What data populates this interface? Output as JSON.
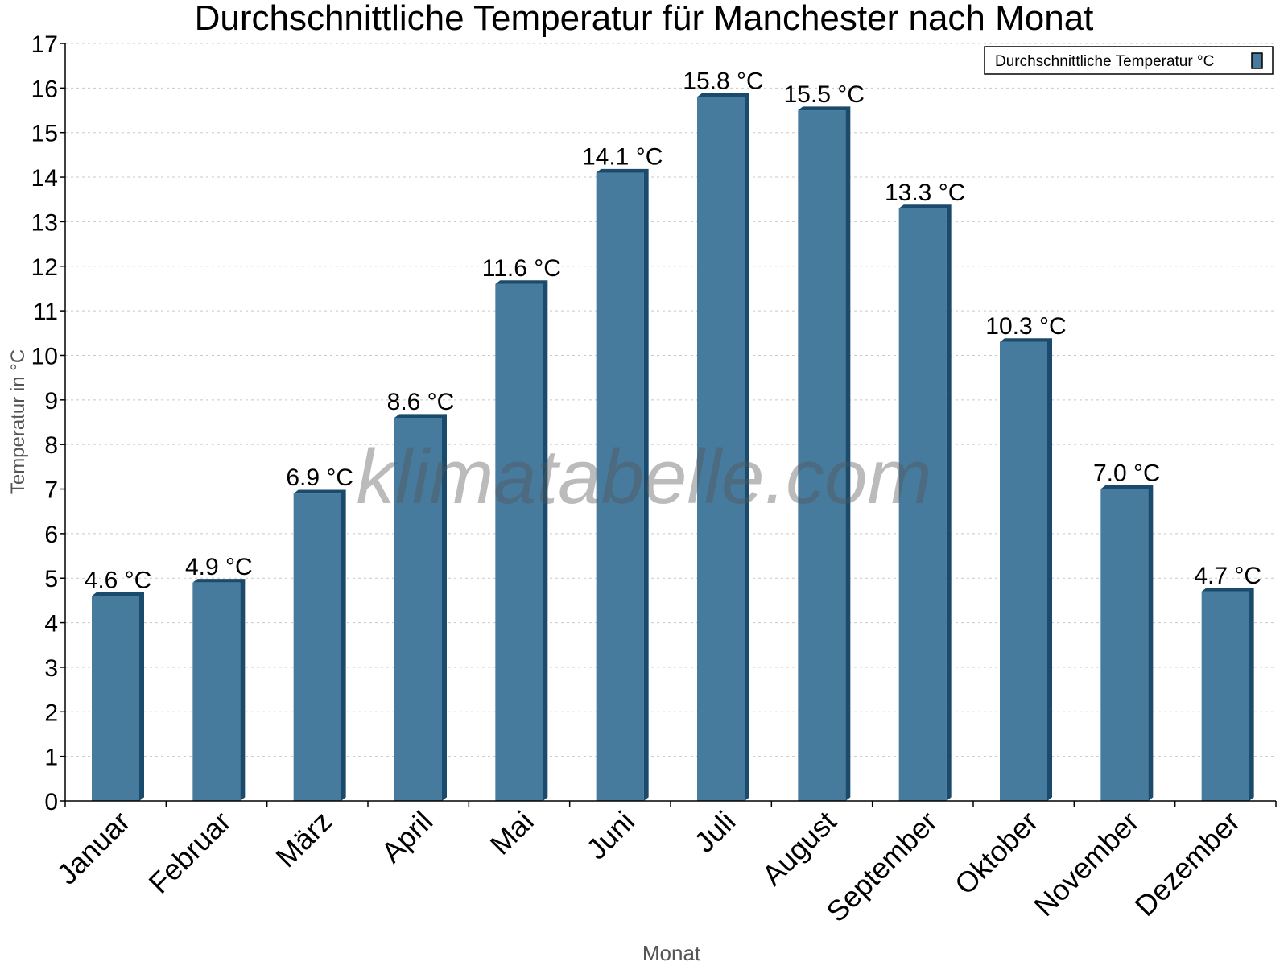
{
  "chart_data": {
    "type": "bar",
    "title": "Durchschnittliche Temperatur für Manchester nach Monat",
    "xlabel": "Monat",
    "ylabel": "Temperatur in °C",
    "categories": [
      "Januar",
      "Februar",
      "März",
      "April",
      "Mai",
      "Juni",
      "Juli",
      "August",
      "September",
      "Oktober",
      "November",
      "Dezember"
    ],
    "series": [
      {
        "name": "Durchschnittliche Temperatur °C",
        "values": [
          4.6,
          4.9,
          6.9,
          8.6,
          11.6,
          14.1,
          15.8,
          15.5,
          13.3,
          10.3,
          7.0,
          4.7
        ]
      }
    ],
    "data_labels": [
      "4.6 °C",
      "4.9 °C",
      "6.9 °C",
      "8.6 °C",
      "11.6 °C",
      "14.1 °C",
      "15.8 °C",
      "15.5 °C",
      "13.3 °C",
      "10.3 °C",
      "7.0 °C",
      "4.7 °C"
    ],
    "ylim": [
      0,
      17
    ],
    "yticks": [
      0,
      1,
      2,
      3,
      4,
      5,
      6,
      7,
      8,
      9,
      10,
      11,
      12,
      13,
      14,
      15,
      16,
      17
    ],
    "grid": true,
    "legend_position": "top-right",
    "colors": {
      "bar": "#467b9d",
      "bar_side": "#1a4b6d"
    }
  },
  "watermark": "klimatabelle.com"
}
